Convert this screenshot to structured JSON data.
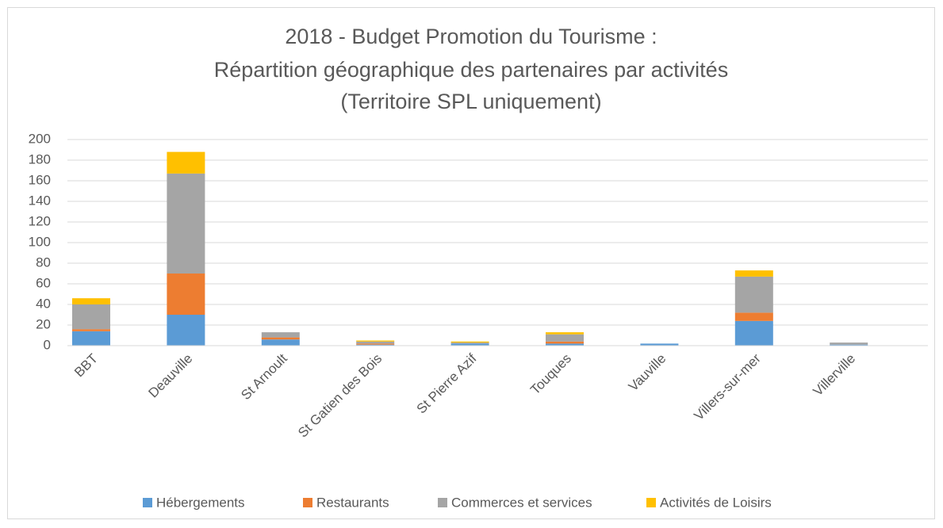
{
  "chart_data": {
    "type": "stacked_bar",
    "title": [
      "2018 - Budget Promotion du Tourisme :",
      "Répartition géographique des partenaires par activités",
      "(Territoire SPL uniquement)"
    ],
    "categories": [
      "BBT",
      "Deauville",
      "St Arnoult",
      "St Gatien des Bois",
      "St Pierre Azif",
      "Touques",
      "Vauville",
      "Villers-sur-mer",
      "Villerville"
    ],
    "series": [
      {
        "name": "Hébergements",
        "color": "#5b9bd5",
        "values": [
          14,
          30,
          6,
          1,
          2,
          2,
          2,
          24,
          1
        ]
      },
      {
        "name": "Restaurants",
        "color": "#ed7d31",
        "values": [
          2,
          40,
          2,
          1,
          0,
          2,
          0,
          8,
          0
        ]
      },
      {
        "name": "Commerces et services",
        "color": "#a5a5a5",
        "values": [
          24,
          97,
          5,
          2,
          1,
          7,
          0,
          35,
          2
        ]
      },
      {
        "name": "Activités de Loisirs",
        "color": "#ffc000",
        "values": [
          6,
          21,
          0,
          1,
          1,
          2,
          0,
          6,
          0
        ]
      }
    ],
    "ylim": [
      0,
      200
    ],
    "yticks": [
      0,
      20,
      40,
      60,
      80,
      100,
      120,
      140,
      160,
      180,
      200
    ],
    "grid": true,
    "legend": "bottom"
  }
}
